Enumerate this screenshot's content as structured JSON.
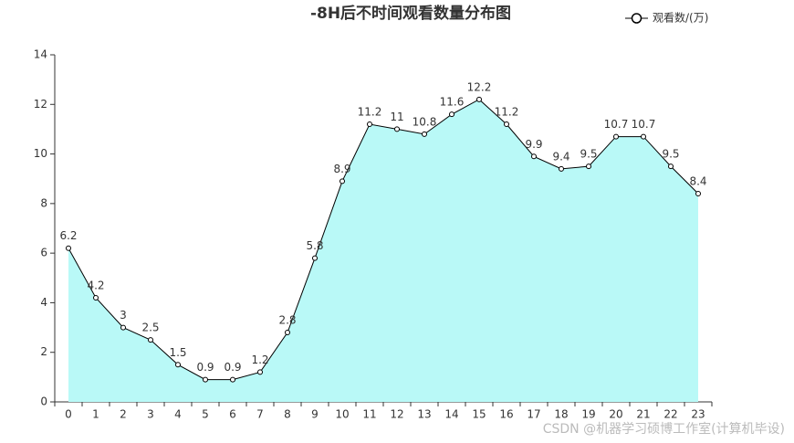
{
  "chart_data": {
    "type": "area",
    "title": "-8H后不时间观看数量分布图",
    "categories": [
      "0",
      "1",
      "2",
      "3",
      "4",
      "5",
      "6",
      "7",
      "8",
      "9",
      "10",
      "11",
      "12",
      "13",
      "14",
      "15",
      "16",
      "17",
      "18",
      "19",
      "20",
      "21",
      "22",
      "23"
    ],
    "series": [
      {
        "name": "观看数/(万)",
        "color": "#000000",
        "fill": "#b9f9f7",
        "values": [
          6.2,
          4.2,
          3,
          2.5,
          1.5,
          0.9,
          0.9,
          1.2,
          2.8,
          5.8,
          8.9,
          11.2,
          11,
          10.8,
          11.6,
          12.2,
          11.2,
          9.9,
          9.4,
          9.5,
          10.7,
          10.7,
          9.5,
          8.4
        ]
      }
    ],
    "ylim": [
      0,
      14
    ],
    "yticks": [
      0,
      2,
      4,
      6,
      8,
      10,
      12,
      14
    ],
    "grid": false,
    "legend": "top-right",
    "watermark": "CSDN @机器学习硕博工作室(计算机毕设)"
  }
}
